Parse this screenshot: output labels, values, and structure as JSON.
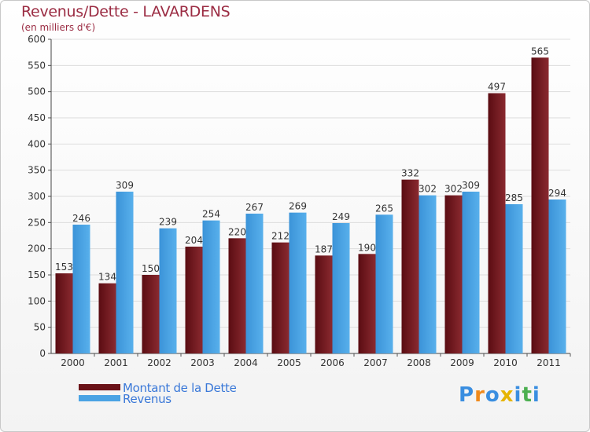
{
  "header": {
    "title": "Revenus/Dette - LAVARDENS",
    "subtitle": "(en milliers d'€)"
  },
  "chart_data": {
    "type": "bar",
    "title": "Revenus/Dette - LAVARDENS",
    "ylabel": "(en milliers d'€)",
    "xlabel": "",
    "ylim": [
      0,
      600
    ],
    "yticks": [
      0,
      50,
      100,
      150,
      200,
      250,
      300,
      350,
      400,
      450,
      500,
      550,
      600
    ],
    "categories": [
      "2000",
      "2001",
      "2002",
      "2003",
      "2004",
      "2005",
      "2006",
      "2007",
      "2008",
      "2009",
      "2010",
      "2011"
    ],
    "series": [
      {
        "name": "Montant de la Dette",
        "color": "#7a1c22",
        "values": [
          153,
          134,
          150,
          204,
          220,
          212,
          187,
          190,
          332,
          302,
          497,
          565
        ]
      },
      {
        "name": "Revenus",
        "color": "#4aa3e4",
        "values": [
          246,
          309,
          239,
          254,
          267,
          269,
          249,
          265,
          302,
          309,
          285,
          294
        ]
      }
    ],
    "legend": "bottom-left",
    "grid": true
  },
  "legend": {
    "items": [
      {
        "label": "Montant de la Dette",
        "color": "#6a1218"
      },
      {
        "label": "Revenus",
        "color": "#4aa3e4"
      }
    ]
  },
  "logo": {
    "letters": [
      "P",
      "r",
      "o",
      "x",
      "i",
      "t",
      "i"
    ],
    "colors": [
      "#3a8ee0",
      "#f08a1c",
      "#3a8ee0",
      "#e6b400",
      "#3a8ee0",
      "#4caf50",
      "#3a8ee0"
    ]
  }
}
